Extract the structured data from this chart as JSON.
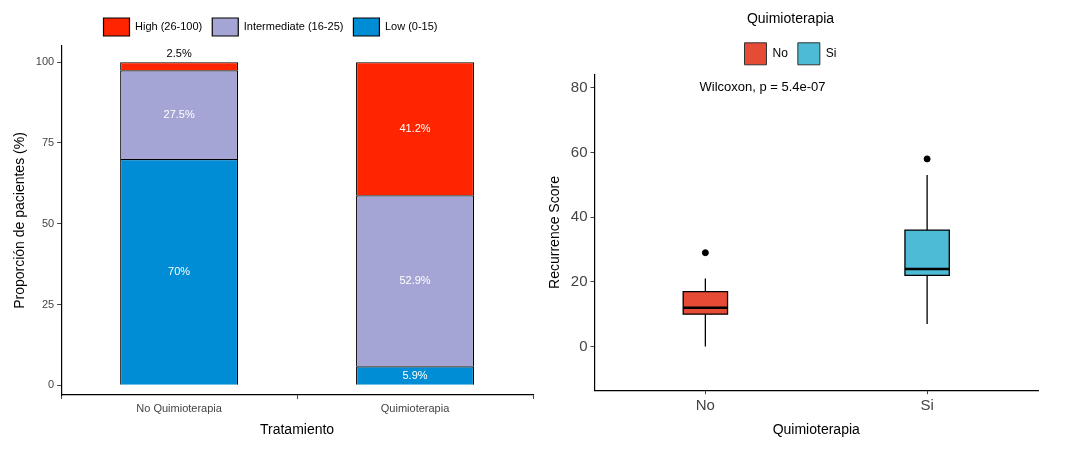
{
  "chart_data": [
    {
      "type": "bar",
      "stacked": true,
      "categories": [
        "No Quimioterapia",
        "Quimioterapia"
      ],
      "xlabel": "Tratamiento",
      "ylabel": "Proporción de pacientes (%)",
      "ylim": [
        -3,
        105
      ],
      "yticks": [
        0,
        25,
        50,
        75,
        100
      ],
      "grid": false,
      "legend": "top",
      "series": [
        {
          "name": "Low (0-15)",
          "color": "#008dd5",
          "values": [
            70,
            5.9
          ],
          "value_labels": [
            "70%",
            "5.9%"
          ]
        },
        {
          "name": "Intermediate (16-25)",
          "color": "#a5a5d5",
          "values": [
            27.5,
            52.9
          ],
          "value_labels": [
            "27.5%",
            "52.9%"
          ]
        },
        {
          "name": "High (26-100)",
          "color": "#ff2500",
          "values": [
            2.5,
            41.2
          ],
          "value_labels": [
            "2.5%",
            "41.2%"
          ]
        }
      ]
    },
    {
      "type": "box",
      "categories": [
        "No",
        "Si"
      ],
      "xlabel": "Quimioterapia",
      "ylabel": "Recurrence Score",
      "legend_title": "Quimioterapia",
      "legend": "top",
      "ylim": [
        -13.5,
        84
      ],
      "yticks": [
        0,
        20,
        40,
        60,
        80
      ],
      "grid": false,
      "annotations": [
        "Wilcoxon, p = 5.4e-07"
      ],
      "series": [
        {
          "name": "No",
          "color": "#e64b35",
          "boxes": [
            {
              "low": 0,
              "q1": 10,
              "median": 12,
              "q3": 17,
              "high": 21,
              "outliers": [
                29
              ]
            },
            null
          ]
        },
        {
          "name": "Si",
          "color": "#4dbbd5",
          "boxes": [
            null,
            {
              "low": 7,
              "q1": 22,
              "median": 24,
              "q3": 36,
              "high": 53,
              "outliers": [
                58
              ]
            }
          ]
        }
      ]
    }
  ]
}
